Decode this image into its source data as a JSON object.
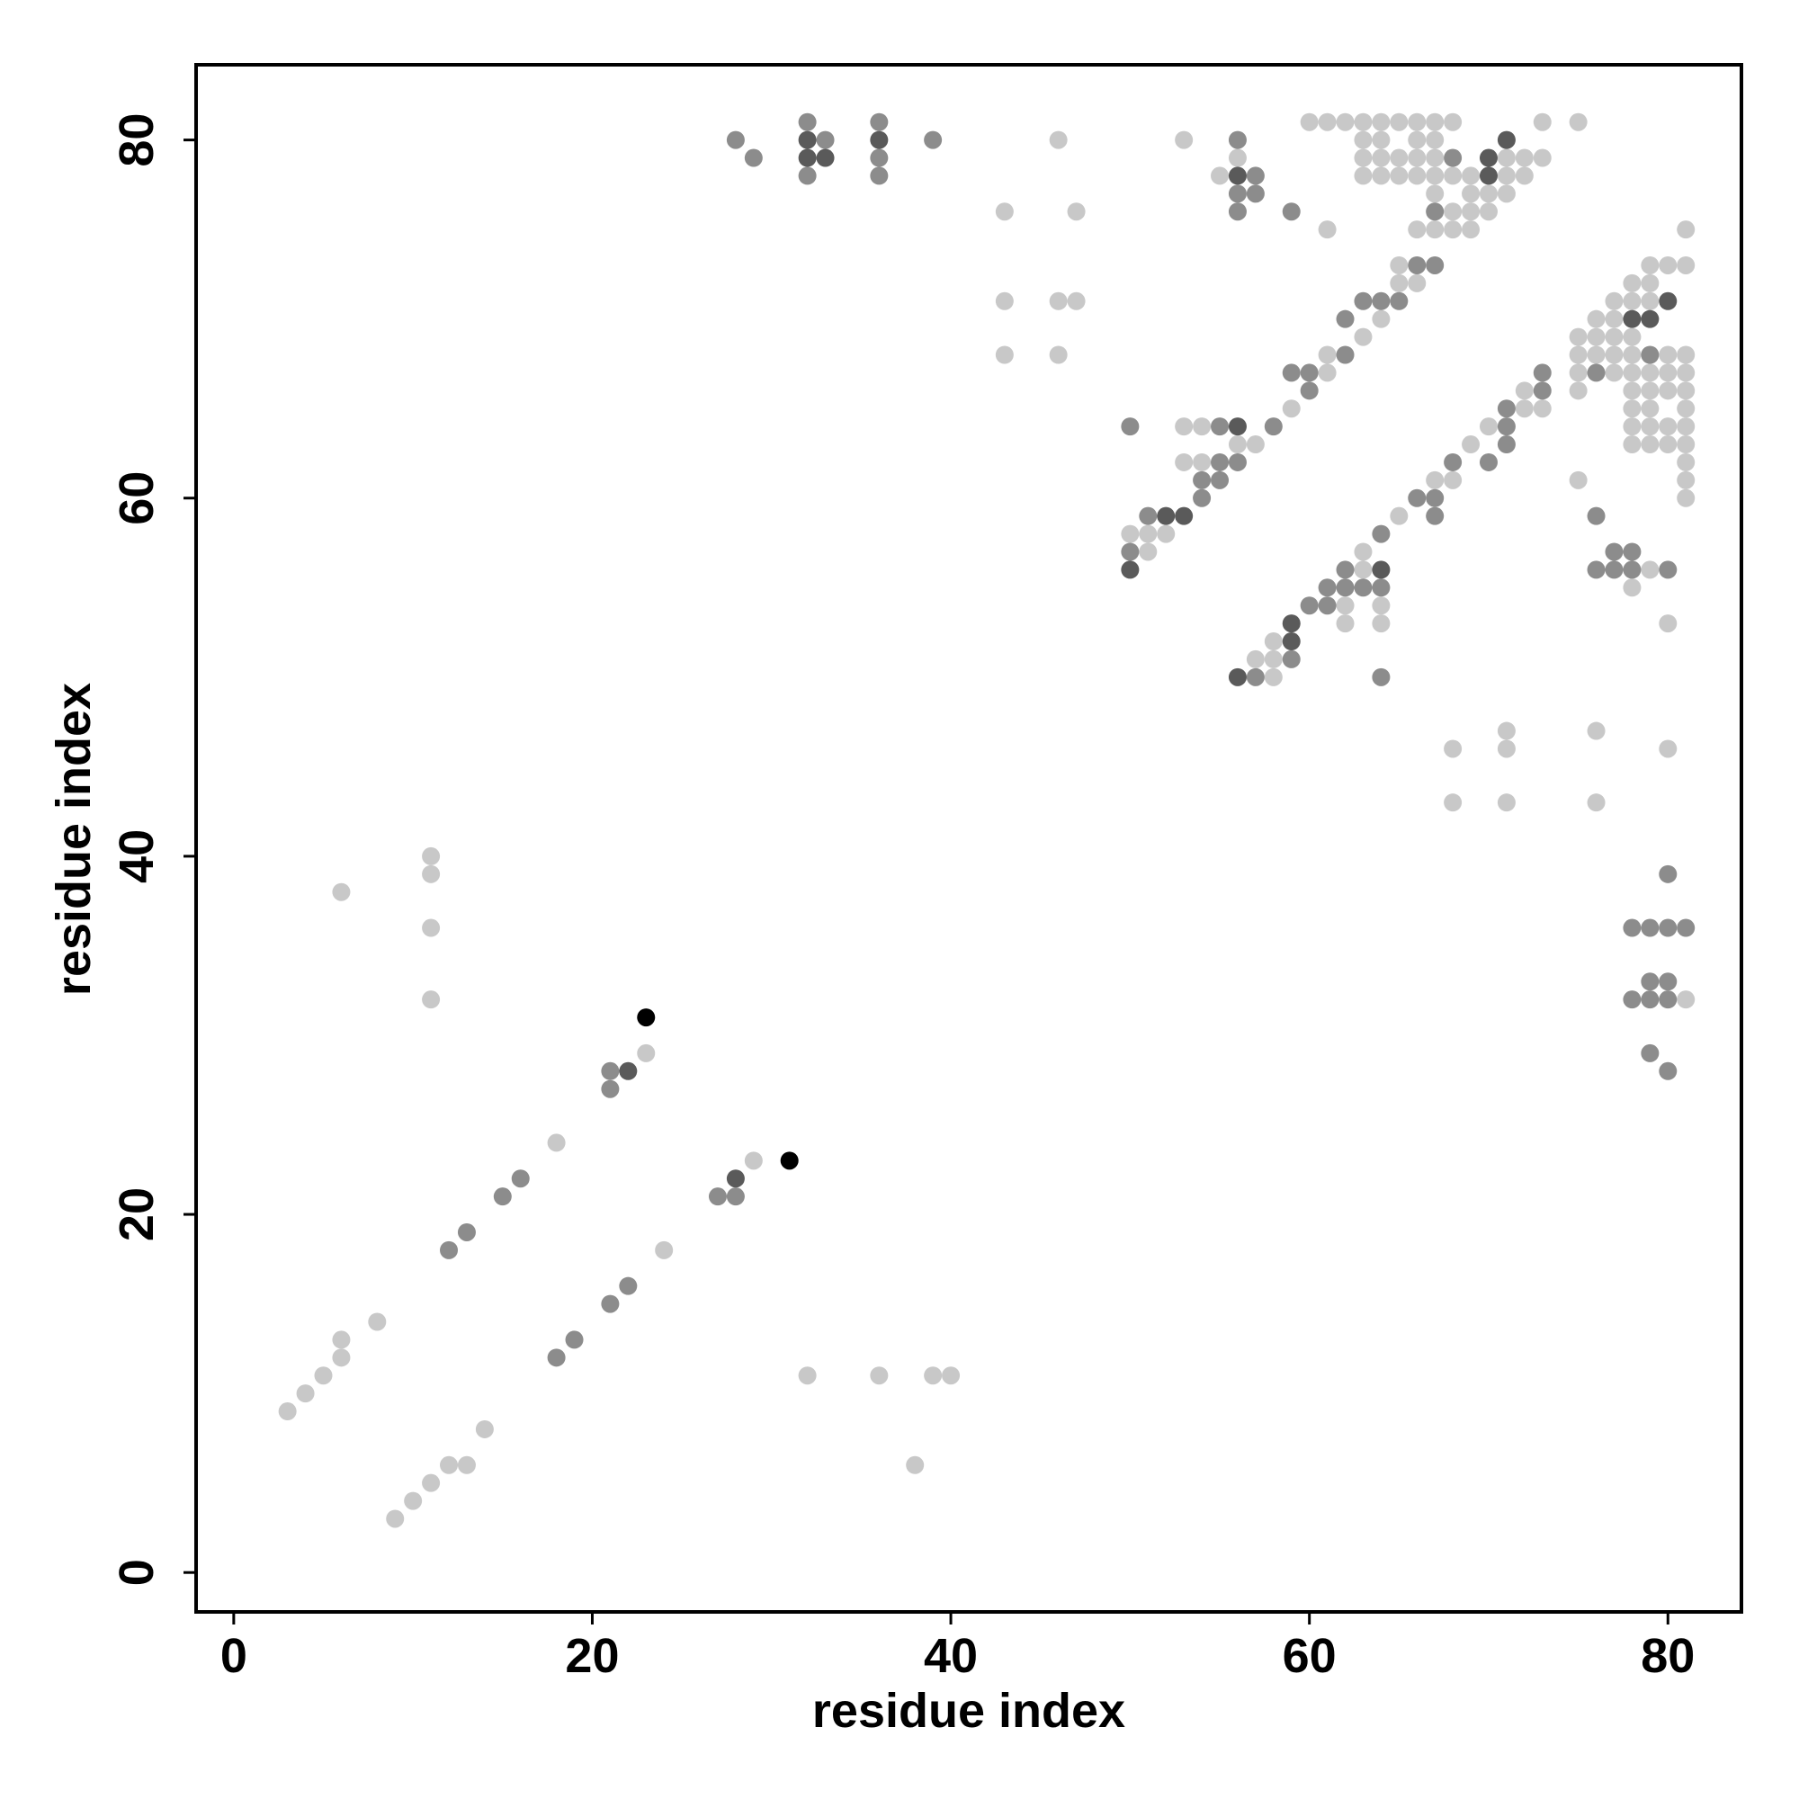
{
  "chart_data": {
    "type": "scatter",
    "xlabel": "residue index",
    "ylabel": "residue index",
    "xlim": [
      -2.1,
      84.1
    ],
    "ylim": [
      -2.2,
      84.2
    ],
    "xticks": [
      0,
      20,
      40,
      60,
      80
    ],
    "yticks": [
      0,
      20,
      40,
      60,
      80
    ],
    "series": [
      {
        "color": "#c8c8c8",
        "x": [
          3,
          4,
          5,
          6,
          6,
          8,
          9,
          10,
          11,
          12,
          13,
          14,
          6,
          11,
          11,
          11,
          11,
          18,
          23,
          24,
          29,
          32,
          36,
          39,
          40,
          38,
          43,
          43,
          43,
          46,
          46,
          46,
          47,
          47,
          53,
          50,
          51,
          51,
          52,
          53,
          53,
          54,
          54,
          55,
          56,
          56,
          57,
          57,
          58,
          58,
          58,
          59,
          60,
          61,
          61,
          61,
          61,
          62,
          62,
          62,
          63,
          63,
          63,
          63,
          63,
          63,
          63,
          64,
          64,
          64,
          64,
          64,
          64,
          64,
          65,
          65,
          65,
          65,
          65,
          65,
          66,
          66,
          66,
          66,
          66,
          66,
          67,
          67,
          67,
          67,
          67,
          67,
          67,
          68,
          68,
          68,
          68,
          68,
          68,
          68,
          69,
          69,
          69,
          69,
          69,
          70,
          70,
          70,
          71,
          71,
          71,
          71,
          71,
          71,
          72,
          72,
          72,
          72,
          73,
          73,
          73,
          75,
          75,
          75,
          75,
          75,
          75,
          76,
          76,
          76,
          76,
          76,
          77,
          77,
          77,
          77,
          77,
          78,
          78,
          78,
          78,
          78,
          78,
          78,
          78,
          78,
          78,
          79,
          79,
          79,
          79,
          79,
          79,
          79,
          79,
          79,
          80,
          80,
          80,
          80,
          80,
          80,
          80,
          80,
          81,
          81,
          81,
          81,
          81,
          81,
          81,
          81,
          81,
          81,
          81,
          81
        ],
        "values": [
          9,
          10,
          11,
          12,
          13,
          14,
          3,
          4,
          5,
          6,
          6,
          8,
          38,
          40,
          39,
          36,
          32,
          24,
          29,
          18,
          23,
          11,
          11,
          11,
          11,
          6,
          76,
          71,
          68,
          80,
          71,
          68,
          76,
          71,
          80,
          58,
          58,
          57,
          58,
          64,
          62,
          64,
          62,
          78,
          79,
          63,
          63,
          51,
          52,
          51,
          50,
          65,
          81,
          81,
          75,
          68,
          67,
          81,
          54,
          53,
          81,
          80,
          79,
          78,
          69,
          57,
          56,
          81,
          80,
          79,
          78,
          70,
          54,
          53,
          81,
          79,
          78,
          73,
          72,
          59,
          81,
          80,
          79,
          78,
          75,
          72,
          81,
          80,
          79,
          78,
          77,
          75,
          61,
          81,
          78,
          76,
          75,
          61,
          46,
          43,
          78,
          77,
          76,
          75,
          63,
          77,
          76,
          64,
          79,
          78,
          77,
          47,
          46,
          43,
          79,
          78,
          66,
          65,
          81,
          79,
          65,
          81,
          69,
          68,
          67,
          66,
          61,
          70,
          69,
          68,
          47,
          43,
          71,
          70,
          69,
          68,
          67,
          72,
          71,
          69,
          68,
          67,
          66,
          65,
          64,
          63,
          55,
          73,
          72,
          71,
          67,
          66,
          65,
          64,
          63,
          56,
          73,
          68,
          67,
          66,
          64,
          63,
          53,
          46,
          75,
          73,
          68,
          67,
          66,
          65,
          64,
          63,
          62,
          61,
          60,
          32
        ]
      },
      {
        "color": "#8c8c8c",
        "x": [
          12,
          13,
          15,
          16,
          18,
          19,
          21,
          22,
          21,
          21,
          27,
          28,
          28,
          29,
          32,
          32,
          33,
          36,
          36,
          36,
          39,
          50,
          50,
          51,
          54,
          54,
          55,
          55,
          55,
          56,
          56,
          56,
          56,
          57,
          57,
          57,
          58,
          59,
          59,
          59,
          60,
          60,
          60,
          61,
          61,
          62,
          62,
          62,
          62,
          63,
          63,
          64,
          64,
          64,
          64,
          65,
          66,
          66,
          67,
          67,
          67,
          67,
          68,
          68,
          70,
          71,
          71,
          71,
          73,
          73,
          76,
          76,
          76,
          77,
          77,
          78,
          78,
          78,
          78,
          79,
          79,
          79,
          79,
          79,
          80,
          80,
          80,
          80,
          80,
          80,
          81
        ],
        "values": [
          18,
          19,
          21,
          22,
          12,
          13,
          15,
          16,
          28,
          27,
          21,
          21,
          80,
          79,
          81,
          78,
          80,
          81,
          79,
          78,
          80,
          64,
          57,
          59,
          61,
          60,
          64,
          62,
          61,
          80,
          77,
          76,
          62,
          78,
          77,
          50,
          64,
          76,
          67,
          51,
          67,
          66,
          54,
          55,
          54,
          70,
          68,
          56,
          55,
          71,
          55,
          71,
          58,
          55,
          50,
          71,
          73,
          60,
          76,
          73,
          60,
          59,
          79,
          62,
          62,
          65,
          64,
          63,
          67,
          66,
          67,
          59,
          56,
          57,
          56,
          57,
          56,
          36,
          32,
          68,
          36,
          33,
          32,
          29,
          56,
          39,
          36,
          33,
          32,
          28,
          36
        ]
      },
      {
        "color": "#5a5a5a",
        "x": [
          22,
          28,
          32,
          32,
          33,
          36,
          50,
          52,
          53,
          56,
          56,
          56,
          59,
          59,
          64,
          70,
          70,
          71,
          78,
          79,
          80
        ],
        "values": [
          28,
          22,
          80,
          79,
          79,
          80,
          56,
          59,
          59,
          78,
          64,
          50,
          53,
          52,
          56,
          79,
          78,
          80,
          70,
          70,
          71
        ]
      },
      {
        "color": "#000000",
        "x": [
          23,
          31
        ],
        "values": [
          31,
          23
        ]
      }
    ]
  }
}
